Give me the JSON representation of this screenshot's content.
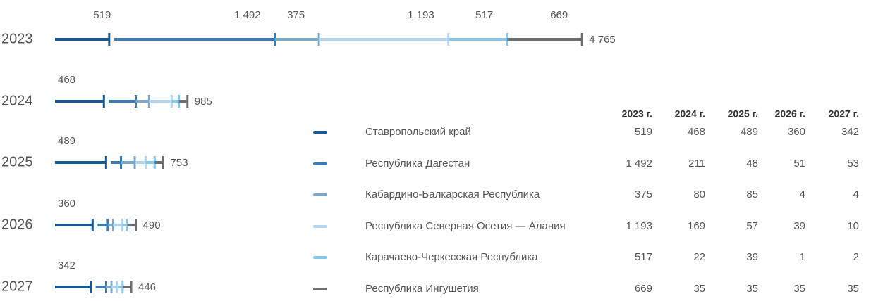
{
  "chart_data": {
    "type": "stacked_bar",
    "categories": [
      "2023",
      "2024",
      "2025",
      "2026",
      "2027"
    ],
    "series": [
      {
        "name": "Ставропольский край",
        "color": "#155a94",
        "values": [
          519,
          468,
          489,
          360,
          342
        ],
        "value_labels": [
          "519",
          "468",
          "489",
          "360",
          "342"
        ]
      },
      {
        "name": "Республика Дагестан",
        "color": "#3a7db6",
        "values": [
          1492,
          211,
          48,
          51,
          53
        ],
        "value_labels": [
          "1 492",
          "211",
          "48",
          "51",
          "53"
        ]
      },
      {
        "name": "Кабардино-Балкарская Республика",
        "color": "#7aa9cc",
        "values": [
          375,
          80,
          85,
          4,
          4
        ],
        "value_labels": [
          "375",
          "80",
          "85",
          "4",
          "4"
        ]
      },
      {
        "name": "Республика Северная Осетия — Алания",
        "color": "#b3d5ef",
        "values": [
          1193,
          169,
          57,
          39,
          10
        ],
        "value_labels": [
          "1 193",
          "169",
          "57",
          "39",
          "10"
        ]
      },
      {
        "name": "Карачаево-Черкесская Республика",
        "color": "#86c7ea",
        "values": [
          517,
          22,
          39,
          1,
          2
        ],
        "value_labels": [
          "517",
          "22",
          "39",
          "1",
          "2"
        ]
      },
      {
        "name": "Республика Ингушетия",
        "color": "#6d6e70",
        "values": [
          669,
          35,
          35,
          35,
          35
        ],
        "value_labels": [
          "669",
          "35",
          "35",
          "35",
          "35"
        ]
      }
    ],
    "totals": {
      "values": [
        4765,
        985,
        753,
        490,
        446
      ],
      "value_labels": [
        "4 765",
        "985",
        "753",
        "490",
        "446"
      ]
    },
    "table_columns": [
      "2023 г.",
      "2024 г.",
      "2025 г.",
      "2026 г.",
      "2027 г."
    ]
  }
}
